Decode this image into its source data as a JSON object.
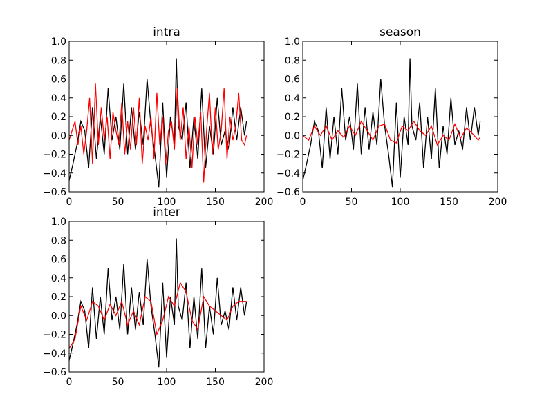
{
  "chart_data": [
    {
      "type": "line",
      "title": "intra",
      "xlim": [
        0,
        200
      ],
      "ylim": [
        -0.6,
        1.0
      ],
      "xticks": [
        "0",
        "50",
        "100",
        "150",
        "200"
      ],
      "yticks": [
        "−0.6",
        "−0.4",
        "−0.2",
        "0.0",
        "0.2",
        "0.4",
        "0.6",
        "0.8",
        "1.0"
      ],
      "grid": false,
      "series": [
        {
          "color": "#000000",
          "x": [
            0,
            4,
            8,
            12,
            16,
            20,
            24,
            28,
            32,
            36,
            40,
            44,
            48,
            52,
            56,
            60,
            64,
            68,
            72,
            76,
            80,
            84,
            88,
            92,
            96,
            100,
            104,
            108,
            110,
            112,
            116,
            120,
            124,
            128,
            132,
            136,
            140,
            144,
            148,
            152,
            156,
            160,
            164,
            168,
            172,
            176,
            180,
            182
          ],
          "values": [
            -0.48,
            -0.3,
            -0.1,
            0.15,
            0.05,
            -0.35,
            0.3,
            -0.25,
            0.2,
            -0.2,
            0.5,
            -0.05,
            0.2,
            -0.15,
            0.55,
            -0.2,
            0.3,
            -0.15,
            0.25,
            -0.1,
            0.6,
            0.1,
            -0.2,
            -0.55,
            0.35,
            -0.45,
            0.2,
            -0.1,
            0.82,
            0.1,
            -0.05,
            0.35,
            -0.35,
            0.2,
            -0.25,
            0.5,
            -0.35,
            0.1,
            -0.2,
            0.4,
            -0.1,
            0.05,
            -0.15,
            0.3,
            -0.05,
            0.3,
            0.0,
            0.15
          ]
        },
        {
          "color": "#ff0000",
          "x": [
            0,
            3,
            6,
            9,
            12,
            15,
            18,
            21,
            24,
            27,
            30,
            33,
            36,
            39,
            42,
            45,
            48,
            51,
            54,
            57,
            60,
            63,
            66,
            69,
            72,
            75,
            78,
            81,
            84,
            87,
            90,
            93,
            96,
            99,
            102,
            105,
            108,
            111,
            114,
            117,
            120,
            123,
            126,
            129,
            132,
            135,
            138,
            141,
            144,
            147,
            150,
            153,
            156,
            159,
            162,
            165,
            168,
            171,
            174,
            177,
            180,
            182
          ],
          "values": [
            -0.05,
            0.05,
            0.15,
            -0.1,
            0.1,
            -0.2,
            0.05,
            0.4,
            -0.3,
            0.55,
            -0.1,
            0.3,
            -0.05,
            0.2,
            -0.25,
            0.25,
            0.05,
            -0.1,
            0.35,
            -0.2,
            0.15,
            -0.15,
            0.3,
            -0.1,
            0.4,
            -0.3,
            0.1,
            -0.05,
            0.2,
            -0.25,
            0.45,
            -0.1,
            0.2,
            -0.3,
            0.05,
            0.15,
            -0.15,
            0.5,
            -0.05,
            0.3,
            -0.25,
            0.1,
            -0.35,
            0.2,
            -0.1,
            0.25,
            -0.5,
            0.05,
            0.45,
            -0.2,
            0.3,
            -0.15,
            0.05,
            0.5,
            -0.25,
            0.2,
            -0.05,
            0.1,
            0.45,
            -0.05,
            -0.1,
            0.0
          ]
        }
      ]
    },
    {
      "type": "line",
      "title": "season",
      "xlim": [
        0,
        200
      ],
      "ylim": [
        -0.6,
        1.0
      ],
      "xticks": [
        "0",
        "50",
        "100",
        "150",
        "200"
      ],
      "yticks": [
        "−0.6",
        "−0.4",
        "−0.2",
        "0.0",
        "0.2",
        "0.4",
        "0.6",
        "0.8",
        "1.0"
      ],
      "grid": false,
      "series": [
        {
          "color": "#000000",
          "x": [
            0,
            4,
            8,
            12,
            16,
            20,
            24,
            28,
            32,
            36,
            40,
            44,
            48,
            52,
            56,
            60,
            64,
            68,
            72,
            76,
            80,
            84,
            88,
            92,
            96,
            100,
            104,
            108,
            110,
            112,
            116,
            120,
            124,
            128,
            132,
            136,
            140,
            144,
            148,
            152,
            156,
            160,
            164,
            168,
            172,
            176,
            180,
            182
          ],
          "values": [
            -0.48,
            -0.3,
            -0.1,
            0.15,
            0.05,
            -0.35,
            0.3,
            -0.25,
            0.2,
            -0.2,
            0.5,
            -0.05,
            0.2,
            -0.15,
            0.55,
            -0.2,
            0.3,
            -0.15,
            0.25,
            -0.1,
            0.6,
            0.1,
            -0.2,
            -0.55,
            0.35,
            -0.45,
            0.2,
            -0.1,
            0.82,
            0.1,
            -0.05,
            0.35,
            -0.35,
            0.2,
            -0.25,
            0.5,
            -0.35,
            0.1,
            -0.2,
            0.4,
            -0.1,
            0.05,
            -0.15,
            0.3,
            -0.05,
            0.3,
            0.0,
            0.15
          ]
        },
        {
          "color": "#ff0000",
          "x": [
            0,
            6,
            12,
            18,
            24,
            30,
            36,
            42,
            48,
            54,
            60,
            66,
            72,
            78,
            84,
            90,
            96,
            102,
            108,
            114,
            120,
            126,
            132,
            138,
            144,
            150,
            156,
            162,
            168,
            174,
            180,
            182
          ],
          "values": [
            0.0,
            -0.05,
            0.1,
            0.0,
            0.1,
            -0.05,
            0.05,
            -0.02,
            0.1,
            0.0,
            0.15,
            0.05,
            -0.05,
            0.1,
            0.12,
            -0.05,
            -0.08,
            0.1,
            0.05,
            0.15,
            0.05,
            0.0,
            0.1,
            -0.1,
            0.0,
            -0.05,
            0.12,
            -0.03,
            0.08,
            0.02,
            -0.05,
            -0.02
          ]
        }
      ]
    },
    {
      "type": "line",
      "title": "inter",
      "xlim": [
        0,
        200
      ],
      "ylim": [
        -0.6,
        1.0
      ],
      "xticks": [
        "0",
        "50",
        "100",
        "150",
        "200"
      ],
      "yticks": [
        "−0.6",
        "−0.4",
        "−0.2",
        "0.0",
        "0.2",
        "0.4",
        "0.6",
        "0.8",
        "1.0"
      ],
      "grid": false,
      "series": [
        {
          "color": "#000000",
          "x": [
            0,
            4,
            8,
            12,
            16,
            20,
            24,
            28,
            32,
            36,
            40,
            44,
            48,
            52,
            56,
            60,
            64,
            68,
            72,
            76,
            80,
            84,
            88,
            92,
            96,
            100,
            104,
            108,
            110,
            112,
            116,
            120,
            124,
            128,
            132,
            136,
            140,
            144,
            148,
            152,
            156,
            160,
            164,
            168,
            172,
            176,
            180,
            182
          ],
          "values": [
            -0.48,
            -0.3,
            -0.1,
            0.15,
            0.05,
            -0.35,
            0.3,
            -0.25,
            0.2,
            -0.2,
            0.5,
            -0.05,
            0.2,
            -0.15,
            0.55,
            -0.2,
            0.3,
            -0.15,
            0.25,
            -0.1,
            0.6,
            0.1,
            -0.2,
            -0.55,
            0.35,
            -0.45,
            0.2,
            -0.1,
            0.82,
            0.1,
            -0.05,
            0.35,
            -0.35,
            0.2,
            -0.25,
            0.5,
            -0.35,
            0.1,
            -0.2,
            0.4,
            -0.1,
            0.05,
            -0.15,
            0.3,
            -0.05,
            0.3,
            0.0,
            0.15
          ]
        },
        {
          "color": "#ff0000",
          "x": [
            0,
            6,
            12,
            18,
            24,
            30,
            36,
            42,
            48,
            54,
            60,
            66,
            72,
            78,
            84,
            90,
            96,
            102,
            108,
            114,
            120,
            126,
            132,
            138,
            144,
            150,
            156,
            162,
            168,
            174,
            180,
            182
          ],
          "values": [
            -0.35,
            -0.25,
            0.1,
            -0.05,
            0.15,
            0.1,
            -0.05,
            0.12,
            0.0,
            0.15,
            -0.1,
            0.05,
            -0.1,
            0.2,
            0.15,
            -0.2,
            -0.05,
            0.2,
            0.1,
            0.35,
            0.25,
            -0.05,
            -0.15,
            0.2,
            0.1,
            0.05,
            0.0,
            -0.05,
            0.1,
            0.15,
            0.15,
            0.15
          ]
        }
      ]
    }
  ]
}
